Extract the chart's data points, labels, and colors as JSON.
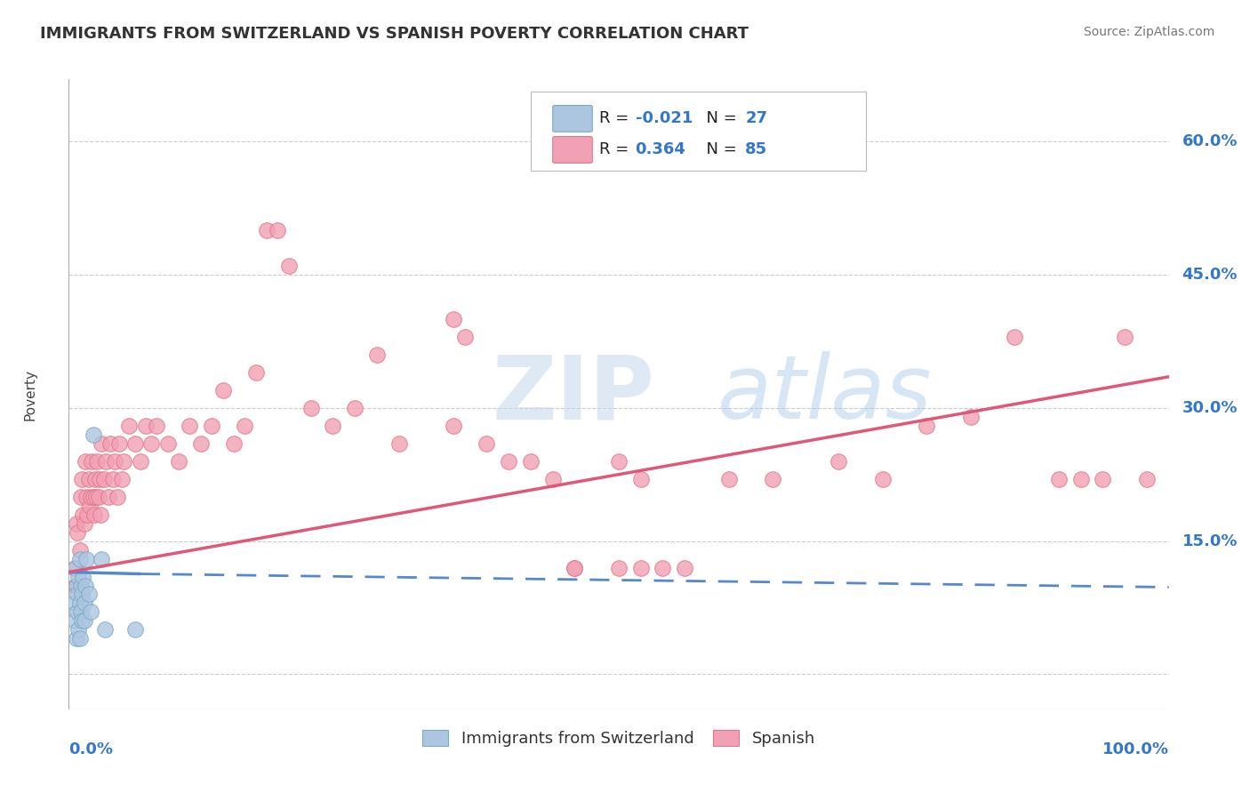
{
  "title": "IMMIGRANTS FROM SWITZERLAND VS SPANISH POVERTY CORRELATION CHART",
  "source": "Source: ZipAtlas.com",
  "ylabel": "Poverty",
  "ytick_vals": [
    0.0,
    0.15,
    0.3,
    0.45,
    0.6
  ],
  "xlim": [
    0.0,
    1.0
  ],
  "ylim": [
    -0.04,
    0.67
  ],
  "watermark_zip": "ZIP",
  "watermark_atlas": "atlas",
  "swiss_color": "#adc6e0",
  "swiss_edge": "#7aaac8",
  "spanish_color": "#f2a0b5",
  "spanish_edge": "#e07888",
  "swiss_line_color": "#5588cc",
  "spanish_line_color": "#e05878",
  "background": "#ffffff",
  "grid_color": "#cccccc",
  "swiss_points_x": [
    0.005,
    0.005,
    0.006,
    0.007,
    0.007,
    0.008,
    0.008,
    0.009,
    0.009,
    0.01,
    0.01,
    0.01,
    0.011,
    0.011,
    0.012,
    0.012,
    0.013,
    0.014,
    0.014,
    0.015,
    0.016,
    0.018,
    0.02,
    0.022,
    0.03,
    0.033,
    0.06
  ],
  "swiss_points_y": [
    0.08,
    0.06,
    0.12,
    0.1,
    0.04,
    0.09,
    0.07,
    0.11,
    0.05,
    0.13,
    0.08,
    0.04,
    0.1,
    0.07,
    0.09,
    0.06,
    0.11,
    0.08,
    0.06,
    0.1,
    0.13,
    0.09,
    0.07,
    0.27,
    0.13,
    0.05,
    0.05
  ],
  "spanish_points_x": [
    0.005,
    0.006,
    0.007,
    0.008,
    0.01,
    0.011,
    0.012,
    0.013,
    0.014,
    0.015,
    0.016,
    0.017,
    0.018,
    0.019,
    0.02,
    0.021,
    0.022,
    0.023,
    0.024,
    0.025,
    0.026,
    0.027,
    0.028,
    0.029,
    0.03,
    0.032,
    0.034,
    0.036,
    0.038,
    0.04,
    0.042,
    0.044,
    0.046,
    0.048,
    0.05,
    0.055,
    0.06,
    0.065,
    0.07,
    0.075,
    0.08,
    0.09,
    0.1,
    0.11,
    0.12,
    0.13,
    0.14,
    0.15,
    0.16,
    0.17,
    0.18,
    0.19,
    0.2,
    0.22,
    0.24,
    0.26,
    0.28,
    0.3,
    0.35,
    0.38,
    0.4,
    0.42,
    0.44,
    0.46,
    0.5,
    0.52,
    0.56,
    0.6,
    0.64,
    0.7,
    0.74,
    0.78,
    0.82,
    0.86,
    0.9,
    0.92,
    0.94,
    0.96,
    0.98,
    0.5,
    0.35,
    0.54,
    0.46,
    0.36,
    0.52
  ],
  "spanish_points_y": [
    0.12,
    0.1,
    0.17,
    0.16,
    0.14,
    0.2,
    0.22,
    0.18,
    0.17,
    0.24,
    0.2,
    0.18,
    0.22,
    0.19,
    0.2,
    0.24,
    0.2,
    0.18,
    0.22,
    0.2,
    0.24,
    0.2,
    0.22,
    0.18,
    0.26,
    0.22,
    0.24,
    0.2,
    0.26,
    0.22,
    0.24,
    0.2,
    0.26,
    0.22,
    0.24,
    0.28,
    0.26,
    0.24,
    0.28,
    0.26,
    0.28,
    0.26,
    0.24,
    0.28,
    0.26,
    0.28,
    0.32,
    0.26,
    0.28,
    0.34,
    0.5,
    0.5,
    0.46,
    0.3,
    0.28,
    0.3,
    0.36,
    0.26,
    0.28,
    0.26,
    0.24,
    0.24,
    0.22,
    0.12,
    0.12,
    0.22,
    0.12,
    0.22,
    0.22,
    0.24,
    0.22,
    0.28,
    0.29,
    0.38,
    0.22,
    0.22,
    0.22,
    0.38,
    0.22,
    0.24,
    0.4,
    0.12,
    0.12,
    0.38,
    0.12
  ],
  "swiss_line_x0": 0.0,
  "swiss_line_x_solid_end": 0.065,
  "swiss_line_x1": 1.0,
  "swiss_line_y0": 0.115,
  "swiss_line_y_solid_end": 0.113,
  "swiss_line_y1": 0.098,
  "spanish_line_x0": 0.0,
  "spanish_line_x1": 1.0,
  "spanish_line_y0": 0.115,
  "spanish_line_y1": 0.335
}
